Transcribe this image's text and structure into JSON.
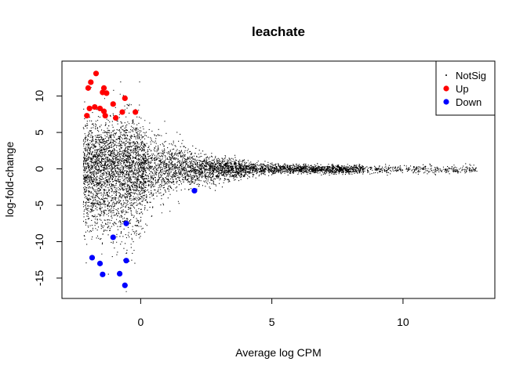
{
  "chart_data": {
    "type": "scatter",
    "title": "leachate",
    "xlabel": "Average log CPM",
    "ylabel": "log-fold-change",
    "xlim": [
      -3.0,
      13.5
    ],
    "ylim": [
      -17.8,
      14.8
    ],
    "x_ticks": [
      0,
      5,
      10
    ],
    "y_ticks": [
      -15,
      -10,
      -5,
      0,
      5,
      10
    ],
    "grid": false,
    "legend": {
      "position": "top-right",
      "entries": [
        {
          "label": "NotSig",
          "color": "#000000"
        },
        {
          "label": "Up",
          "color": "#ff0000"
        },
        {
          "label": "Down",
          "color": "#0000ff"
        }
      ]
    },
    "series": [
      {
        "name": "Up",
        "color": "#ff0000",
        "points": [
          [
            -1.7,
            13.1
          ],
          [
            -1.9,
            11.9
          ],
          [
            -2.0,
            11.1
          ],
          [
            -1.4,
            11.1
          ],
          [
            -1.45,
            10.5
          ],
          [
            -1.3,
            10.4
          ],
          [
            -0.6,
            9.7
          ],
          [
            -1.05,
            8.9
          ],
          [
            -1.75,
            8.5
          ],
          [
            -1.55,
            8.3
          ],
          [
            -1.95,
            8.3
          ],
          [
            -1.4,
            7.9
          ],
          [
            -0.7,
            7.8
          ],
          [
            -0.2,
            7.8
          ],
          [
            -1.35,
            7.3
          ],
          [
            -2.05,
            7.3
          ],
          [
            -0.95,
            7.0
          ]
        ]
      },
      {
        "name": "Down",
        "color": "#0000ff",
        "points": [
          [
            2.05,
            -3.0
          ],
          [
            -0.55,
            -7.5
          ],
          [
            -1.05,
            -9.4
          ],
          [
            -1.85,
            -12.2
          ],
          [
            -0.55,
            -12.6
          ],
          [
            -1.55,
            -13.0
          ],
          [
            -0.8,
            -14.4
          ],
          [
            -1.45,
            -14.5
          ],
          [
            -0.6,
            -16.0
          ]
        ]
      },
      {
        "name": "NotSig",
        "color": "#000000",
        "n_points": 9000
      }
    ]
  }
}
